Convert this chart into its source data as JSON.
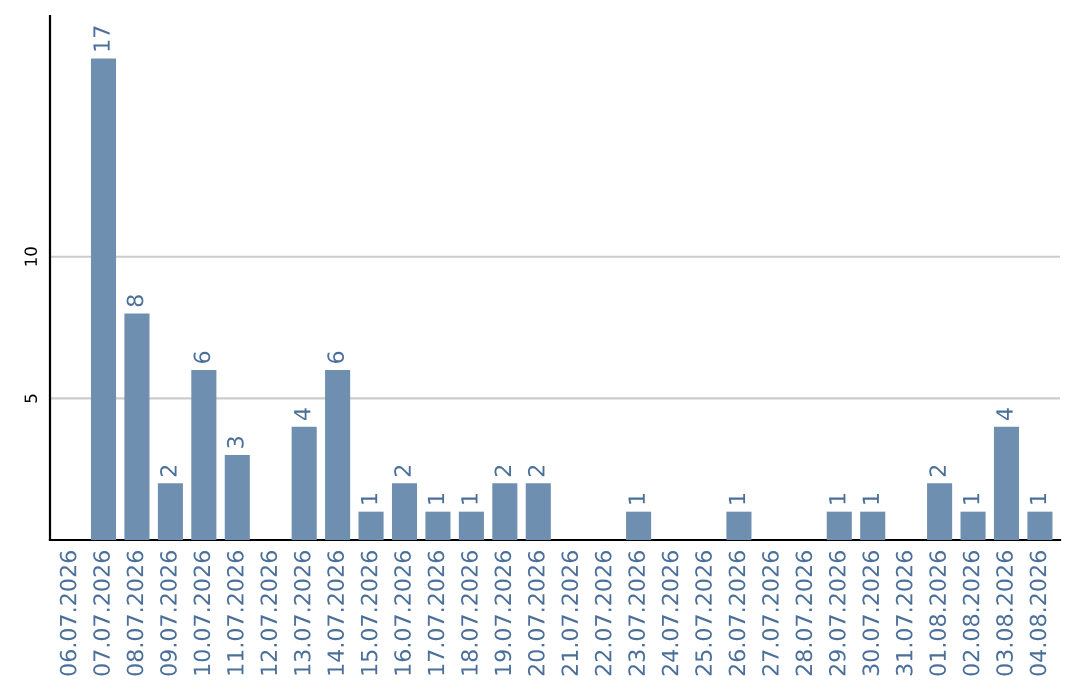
{
  "chart_data": {
    "type": "bar",
    "categories": [
      "06.07.2026",
      "07.07.2026",
      "08.07.2026",
      "09.07.2026",
      "10.07.2026",
      "11.07.2026",
      "12.07.2026",
      "13.07.2026",
      "14.07.2026",
      "15.07.2026",
      "16.07.2026",
      "17.07.2026",
      "18.07.2026",
      "19.07.2026",
      "20.07.2026",
      "21.07.2026",
      "22.07.2026",
      "23.07.2026",
      "24.07.2026",
      "25.07.2026",
      "26.07.2026",
      "27.07.2026",
      "28.07.2026",
      "29.07.2026",
      "30.07.2026",
      "31.07.2026",
      "01.08.2026",
      "02.08.2026",
      "03.08.2026",
      "04.08.2026"
    ],
    "values": [
      0,
      17,
      8,
      2,
      6,
      3,
      0,
      4,
      6,
      1,
      2,
      1,
      1,
      2,
      2,
      0,
      0,
      1,
      0,
      0,
      1,
      0,
      0,
      1,
      1,
      0,
      2,
      1,
      4,
      1
    ],
    "value_labels": [
      null,
      "17",
      "8",
      "2",
      "6",
      "3",
      null,
      "4",
      "6",
      "1",
      "2",
      "1",
      "1",
      "2",
      "2",
      null,
      null,
      "1",
      null,
      null,
      "1",
      null,
      null,
      "1",
      "1",
      null,
      "2",
      "1",
      "4",
      "1"
    ],
    "color": "#6f8fb0",
    "ylim": [
      0,
      18.5
    ],
    "yticks": [
      5,
      10
    ],
    "grid": "y"
  }
}
